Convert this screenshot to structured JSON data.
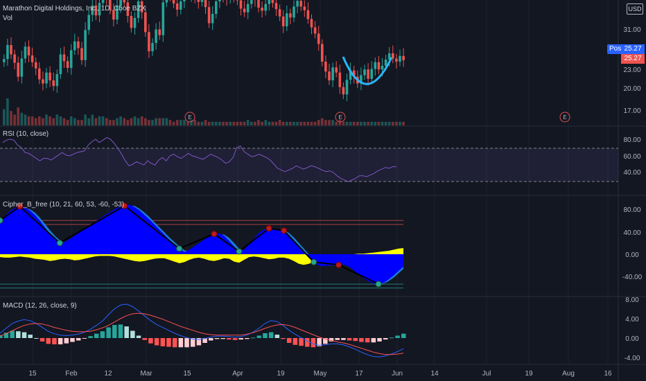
{
  "header": {
    "symbol": "Marathon Digital Holdings, Inc., 1D, Cboe BZX",
    "volume_label": "Vol",
    "currency": "USD",
    "post_label": "Post",
    "post_price": "25.27",
    "last_price": "25.27"
  },
  "colors": {
    "background": "#131722",
    "up": "#26a69a",
    "down": "#ef5350",
    "rsi": "#7e57c2",
    "macd": "#2962ff",
    "signal": "#ff5252",
    "cipher_wave": "#0000ff",
    "cipher_fill": "#ffff00",
    "post_badge": "#2962ff"
  },
  "x_axis_labels": [
    "15",
    "Feb",
    "12",
    "Mar",
    "15",
    "Apr",
    "19",
    "May",
    "17",
    "Jun",
    "14",
    "Jul",
    "19",
    "Aug",
    "16"
  ],
  "earnings_marker": "E",
  "panes": {
    "price": {
      "ticks": [
        "31.00",
        "23.00",
        "20.00",
        "17.00"
      ],
      "closes": [
        25.5,
        28.2,
        26.4,
        24.8,
        22.1,
        25.6,
        27.9,
        26.2,
        24.9,
        23.7,
        21.6,
        20.8,
        22.9,
        21.4,
        20.3,
        22.6,
        26.4,
        25.1,
        23.8,
        27.2,
        28.9,
        27.6,
        25.3,
        31.1,
        34.0,
        35.8,
        33.9,
        36.3,
        38.5,
        37.2,
        35.0,
        33.1,
        35.7,
        37.9,
        36.4,
        33.8,
        31.5,
        33.4,
        36.6,
        34.5,
        30.7,
        27.0,
        28.6,
        31.2,
        30.1,
        36.4,
        38.4,
        37.9,
        36.2,
        35.0,
        36.6,
        38.1,
        37.8,
        38.6,
        37.1,
        36.5,
        38.3,
        35.5,
        32.4,
        34.2,
        36.6,
        37.9,
        37.3,
        37.1,
        38.2,
        37.7,
        36.8,
        35.2,
        34.5,
        36.1,
        37.4,
        36.9,
        35.4,
        34.8,
        36.1,
        37.0,
        36.3,
        35.1,
        33.7,
        31.8,
        34.3,
        33.5,
        35.6,
        36.7,
        35.6,
        34.9,
        33.2,
        31.6,
        30.4,
        28.4,
        25.0,
        23.1,
        21.4,
        23.9,
        22.9,
        20.1,
        18.7,
        21.5,
        23.3,
        22.1,
        20.8,
        22.4,
        23.5,
        21.7,
        23.6,
        24.9,
        23.5,
        24.2,
        25.4,
        26.6,
        25.6,
        25.0,
        26.1,
        25.27
      ],
      "volume": [
        9,
        15,
        8,
        6,
        10,
        7,
        6,
        5,
        5,
        4,
        5,
        4,
        6,
        5,
        4,
        6,
        5,
        4,
        3,
        5,
        4,
        3,
        3,
        6,
        4,
        6,
        4,
        5,
        5,
        4,
        3,
        3,
        4,
        5,
        4,
        3,
        4,
        5,
        4,
        5,
        4,
        3,
        3,
        4,
        4,
        4,
        4,
        3,
        2,
        3,
        3,
        3,
        2,
        3,
        3,
        2,
        2,
        3,
        2,
        2,
        2,
        2,
        2,
        2,
        2,
        2,
        2,
        2,
        2,
        3,
        2,
        2,
        3,
        2,
        3,
        2,
        2,
        2,
        3,
        2,
        2,
        2,
        2,
        2,
        2,
        2,
        2,
        2,
        2,
        3,
        4,
        3,
        3,
        3,
        2,
        3,
        2,
        2,
        2,
        2,
        2,
        2,
        2,
        2,
        2,
        2,
        2,
        2,
        2,
        2,
        2,
        2,
        2,
        2
      ]
    },
    "rsi": {
      "title": "RSI (10, close)",
      "ticks": [
        "80.00",
        "60.00",
        "40.00"
      ],
      "values": [
        76.0,
        79.0,
        80.0,
        79.0,
        73.0,
        70.0,
        64.0,
        63.0,
        60.0,
        57.0,
        54.0,
        57.0,
        57.0,
        55.0,
        58.0,
        61.0,
        64.0,
        61.0,
        60.0,
        62.0,
        64.0,
        65.0,
        66.0,
        73.0,
        77.0,
        80.0,
        76.0,
        79.0,
        82.0,
        80.0,
        75.0,
        69.0,
        62.0,
        54.0,
        48.0,
        50.0,
        53.0,
        51.0,
        49.0,
        54.0,
        51.0,
        49.0,
        55.0,
        58.0,
        54.0,
        60.0,
        62.0,
        59.0,
        57.0,
        60.0,
        63.0,
        60.0,
        59.0,
        57.0,
        56.0,
        59.0,
        62.0,
        60.0,
        58.0,
        55.0,
        51.0,
        53.0,
        58.0,
        70.0,
        72.0,
        65.0,
        62.0,
        59.0,
        60.0,
        62.0,
        60.0,
        58.0,
        55.0,
        50.0,
        45.0,
        43.0,
        41.0,
        43.0,
        45.0,
        48.0,
        46.0,
        44.0,
        46.0,
        48.0,
        47.0,
        45.0,
        43.0,
        41.0,
        42.0,
        40.0,
        36.0,
        33.0,
        31.0,
        29.0,
        31.0,
        33.0,
        36.0,
        36.0,
        35.0,
        37.0,
        39.0,
        42.0,
        44.0,
        46.0,
        45.0,
        47.0,
        47.0
      ]
    },
    "cipher": {
      "title": "Cipher_B_free (10, 21, 60, 53, -60, -53)",
      "ticks": [
        "80.00",
        "40.00",
        "0.00",
        "-40.00"
      ],
      "wave": [
        60.0,
        68.0,
        77.0,
        82.0,
        85.0,
        83.0,
        78.0,
        70.0,
        60.0,
        48.0,
        36.0,
        26.0,
        20.0,
        22.0,
        27.0,
        33.0,
        39.0,
        45.0,
        51.0,
        57.0,
        63.0,
        69.0,
        74.0,
        80.0,
        84.0,
        86.0,
        88.0,
        84.0,
        78.0,
        70.0,
        62.0,
        53.0,
        44.0,
        35.0,
        26.0,
        18.0,
        10.0,
        4.0,
        8.0,
        14.0,
        20.0,
        26.0,
        32.0,
        36.0,
        37.0,
        33.0,
        24.0,
        14.0,
        5.0,
        8.0,
        18.0,
        28.0,
        38.0,
        44.0,
        46.0,
        45.0,
        44.0,
        42.0,
        34.0,
        25.0,
        14.0,
        4.0,
        -6.0,
        -14.0,
        -20.0,
        -21.0,
        -20.0,
        -20.0,
        -19.0,
        -18.0,
        -22.0,
        -28.0,
        -36.0,
        -43.0,
        -48.0,
        -52.0,
        -53.0,
        -51.0,
        -45.0,
        -38.0,
        -30.0,
        -22.0
      ],
      "wave2": [
        40.0,
        52.0,
        63.0,
        73.0,
        79.0,
        82.0,
        80.0,
        74.0,
        65.0,
        54.0,
        43.0,
        33.0,
        25.0,
        21.0,
        22.0,
        27.0,
        33.0,
        39.0,
        45.0,
        51.0,
        57.0,
        63.0,
        68.0,
        74.0,
        79.0,
        83.0,
        86.0,
        86.0,
        81.0,
        74.0,
        66.0,
        57.0,
        48.0,
        39.0,
        30.0,
        22.0,
        14.0,
        7.0,
        5.0,
        9.0,
        15.0,
        21.0,
        27.0,
        32.0,
        35.0,
        35.0,
        29.0,
        20.0,
        10.0,
        6.0,
        13.0,
        23.0,
        33.0,
        40.0,
        44.0,
        45.0,
        44.0,
        43.0,
        38.0,
        30.0,
        20.0,
        10.0,
        0.0,
        -9.0,
        -16.0,
        -19.0,
        -20.0,
        -20.0,
        -19.0,
        -18.0,
        -20.0,
        -25.0,
        -32.0,
        -40.0,
        -46.0,
        -50.0,
        -53.0,
        -52.0,
        -48.0,
        -42.0,
        -34.0,
        -26.0
      ],
      "money_flow": [
        -5.0,
        -6.0,
        -6.0,
        -5.0,
        -4.0,
        -5.0,
        -6.0,
        -8.0,
        -9.0,
        -10.0,
        -12.0,
        -11.0,
        -9.0,
        -8.0,
        -9.0,
        -11.0,
        -10.0,
        -8.0,
        -6.0,
        -4.0,
        -3.0,
        -3.0,
        -3.0,
        -4.0,
        -6.0,
        -8.0,
        -10.0,
        -12.0,
        -13.0,
        -12.0,
        -10.0,
        -8.0,
        -7.0,
        -7.0,
        -10.0,
        -13.0,
        -16.0,
        -14.0,
        -10.0,
        -7.0,
        -6.0,
        -8.0,
        -11.0,
        -12.0,
        -10.0,
        -7.0,
        -8.0,
        -13.0,
        -15.0,
        -10.0,
        -5.0,
        -4.0,
        -5.0,
        -7.0,
        -9.0,
        -8.0,
        -6.0,
        -6.0,
        -8.0,
        -12.0,
        -17.0,
        -19.0,
        -17.0,
        -14.0,
        -12.0,
        -11.0,
        -9.0,
        -6.0,
        -4.0,
        -2.0,
        -1.0,
        0.0,
        1.0,
        1.0,
        2.0,
        3.0,
        4.0,
        5.0,
        6.0,
        8.0,
        10.0,
        11.0
      ],
      "buy_markers": [
        0,
        12,
        36,
        48,
        63,
        76
      ],
      "sell_markers": [
        4,
        25,
        43,
        54,
        57,
        68
      ],
      "levels": [
        60,
        53,
        -53,
        -60
      ]
    },
    "macd": {
      "title": "MACD (12, 26, close, 9)",
      "ticks": [
        "8.00",
        "4.00",
        "0.00",
        "-4.00"
      ],
      "macd": [
        1.0,
        2.0,
        3.0,
        3.5,
        3.8,
        3.6,
        3.0,
        2.2,
        1.4,
        0.9,
        0.6,
        0.5,
        0.6,
        0.8,
        1.2,
        1.8,
        2.6,
        3.5,
        4.8,
        6.0,
        6.8,
        7.0,
        6.5,
        5.6,
        4.6,
        3.6,
        2.8,
        2.2,
        1.6,
        1.0,
        0.5,
        0.1,
        -0.2,
        -0.3,
        -0.1,
        0.2,
        0.4,
        0.4,
        0.3,
        0.2,
        0.3,
        0.6,
        1.2,
        2.0,
        3.0,
        3.6,
        3.4,
        2.6,
        1.6,
        0.8,
        0.1,
        -0.6,
        -1.2,
        -1.5,
        -1.4,
        -1.2,
        -1.2,
        -1.4,
        -1.8,
        -2.3,
        -2.9,
        -3.4,
        -3.8,
        -3.9,
        -3.7,
        -3.3,
        -2.8,
        -2.2
      ],
      "signal": [
        0.4,
        0.9,
        1.5,
        2.1,
        2.6,
        2.9,
        3.0,
        2.9,
        2.6,
        2.2,
        1.9,
        1.6,
        1.4,
        1.3,
        1.3,
        1.4,
        1.7,
        2.1,
        2.6,
        3.3,
        4.0,
        4.6,
        5.0,
        5.1,
        5.0,
        4.7,
        4.3,
        3.9,
        3.4,
        2.9,
        2.4,
        2.0,
        1.6,
        1.2,
        0.9,
        0.7,
        0.6,
        0.6,
        0.6,
        0.6,
        0.6,
        0.8,
        1.1,
        1.5,
        2.0,
        2.4,
        2.7,
        2.8,
        2.6,
        2.2,
        1.7,
        1.2,
        0.7,
        0.2,
        -0.2,
        -0.5,
        -0.8,
        -1.0,
        -1.3,
        -1.7,
        -2.1,
        -2.5,
        -2.9,
        -3.2,
        -3.4,
        -3.4,
        -3.3,
        -3.1
      ]
    }
  }
}
